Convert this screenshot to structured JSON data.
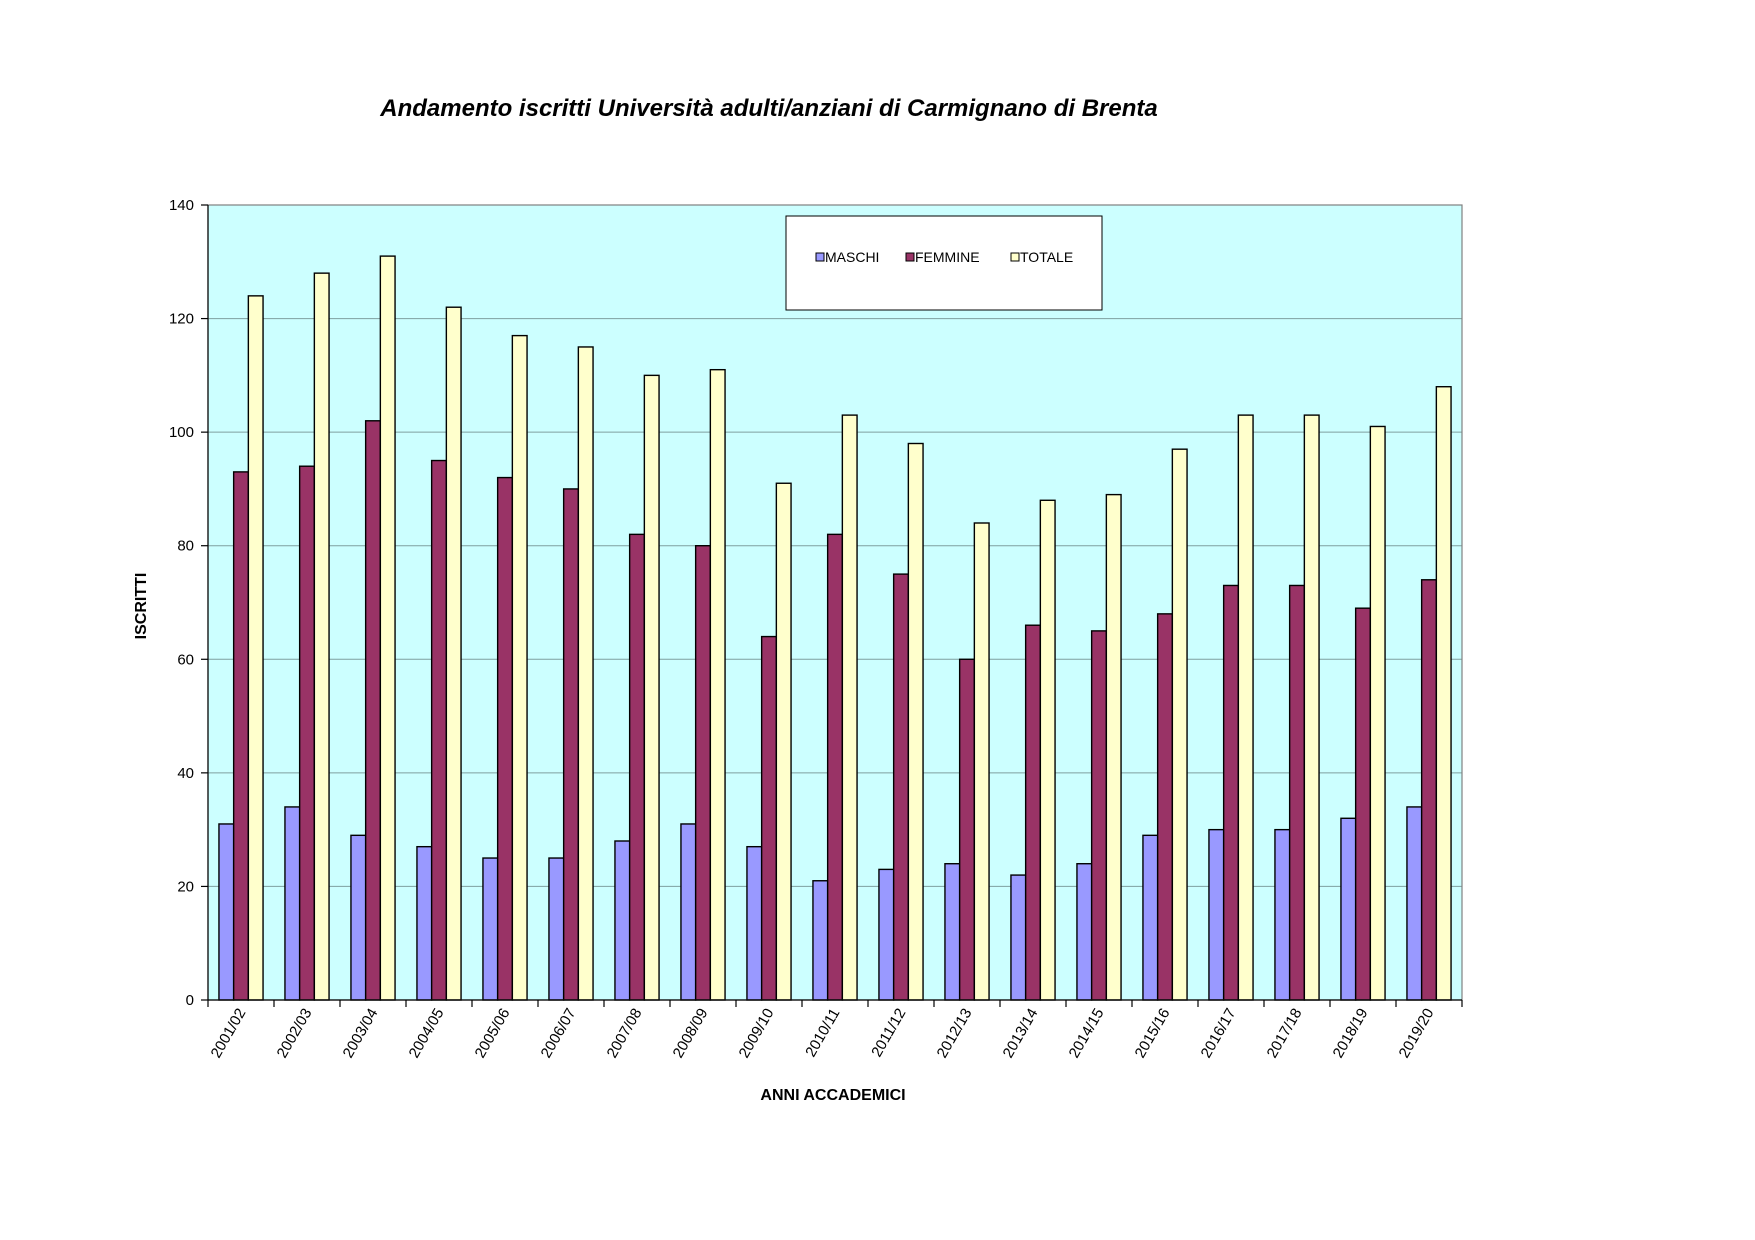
{
  "chart_data": {
    "type": "bar",
    "title": "Andamento iscritti Università adulti/anziani di Carmignano di Brenta",
    "xlabel": "ANNI ACCADEMICI",
    "ylabel": "ISCRITTI",
    "ylim": [
      0,
      140
    ],
    "yticks": [
      0,
      20,
      40,
      60,
      80,
      100,
      120,
      140
    ],
    "grid": true,
    "legend_position": "top-center",
    "categories": [
      "2001/02",
      "2002/03",
      "2003/04",
      "2004/05",
      "2005/06",
      "2006/07",
      "2007/08",
      "2008/09",
      "2009/10",
      "2010/11",
      "2011/12",
      "2012/13",
      "2013/14",
      "2014/15",
      "2015/16",
      "2016/17",
      "2017/18",
      "2018/19",
      "2019/20"
    ],
    "series": [
      {
        "name": "MASCHI",
        "color": "#9999ff",
        "values": [
          31,
          34,
          29,
          27,
          25,
          25,
          28,
          31,
          27,
          21,
          23,
          24,
          22,
          24,
          29,
          30,
          30,
          32,
          34
        ]
      },
      {
        "name": "FEMMINE",
        "color": "#993366",
        "values": [
          93,
          94,
          102,
          95,
          92,
          90,
          82,
          80,
          64,
          82,
          75,
          60,
          66,
          65,
          68,
          73,
          73,
          69,
          74
        ]
      },
      {
        "name": "TOTALE",
        "color": "#ffffcc",
        "values": [
          124,
          128,
          131,
          122,
          117,
          115,
          110,
          111,
          91,
          103,
          98,
          84,
          88,
          89,
          97,
          103,
          103,
          101,
          108
        ]
      }
    ],
    "plot_background": "#ccffff",
    "gridline_color": "#7f9f9f",
    "bar_outline_color": "#000000"
  }
}
